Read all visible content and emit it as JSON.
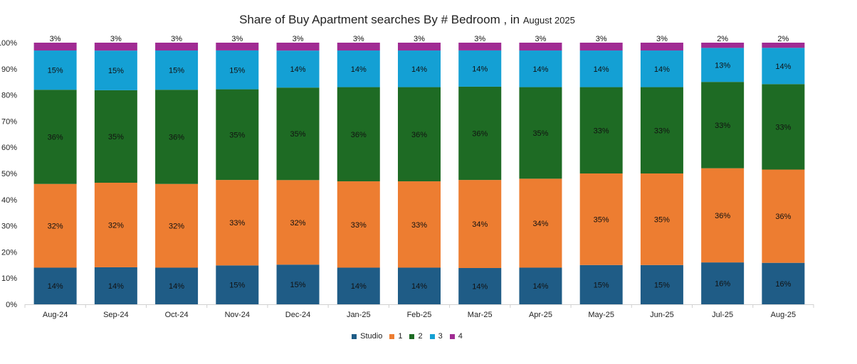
{
  "title_main": "Share of Buy Apartment searches  By # Bedroom , in",
  "title_small": "August 2025",
  "chart_data": {
    "type": "bar",
    "stacked": true,
    "title": "Share of Buy Apartment searches  By # Bedroom , in August 2025",
    "categories": [
      "Aug-24",
      "Sep-24",
      "Oct-24",
      "Nov-24",
      "Dec-24",
      "Jan-25",
      "Feb-25",
      "Mar-25",
      "Apr-25",
      "May-25",
      "Jun-25",
      "Jul-25",
      "Aug-25"
    ],
    "ylim": [
      0,
      100
    ],
    "yticks": [
      "0%",
      "10%",
      "20%",
      "30%",
      "40%",
      "50%",
      "60%",
      "70%",
      "80%",
      "90%",
      "100%"
    ],
    "legend_position": "bottom",
    "series": [
      {
        "name": "Studio",
        "color": "#1f5c86",
        "values": [
          14,
          14,
          14,
          15,
          15,
          14,
          14,
          14,
          14,
          15,
          15,
          16,
          16
        ],
        "labels": [
          "14%",
          "14%",
          "14%",
          "15%",
          "15%",
          "14%",
          "14%",
          "14%",
          "14%",
          "15%",
          "15%",
          "16%",
          "16%"
        ]
      },
      {
        "name": "1",
        "color": "#ed7d31",
        "values": [
          32,
          32,
          32,
          33,
          32,
          33,
          33,
          34,
          34,
          35,
          35,
          36,
          36
        ],
        "labels": [
          "32%",
          "32%",
          "32%",
          "33%",
          "32%",
          "33%",
          "33%",
          "34%",
          "34%",
          "35%",
          "35%",
          "36%",
          "36%"
        ]
      },
      {
        "name": "2",
        "color": "#1e6b24",
        "values": [
          36,
          35,
          36,
          35,
          35,
          36,
          36,
          36,
          35,
          33,
          33,
          33,
          33
        ],
        "labels": [
          "36%",
          "35%",
          "36%",
          "35%",
          "35%",
          "36%",
          "36%",
          "36%",
          "35%",
          "33%",
          "33%",
          "33%",
          "33%"
        ]
      },
      {
        "name": "3",
        "color": "#14a0d4",
        "values": [
          15,
          15,
          15,
          15,
          14,
          14,
          14,
          14,
          14,
          14,
          14,
          13,
          14
        ],
        "labels": [
          "15%",
          "15%",
          "15%",
          "15%",
          "14%",
          "14%",
          "14%",
          "14%",
          "14%",
          "14%",
          "14%",
          "13%",
          "14%"
        ]
      },
      {
        "name": "4",
        "color": "#a02b93",
        "values": [
          3,
          3,
          3,
          3,
          3,
          3,
          3,
          3,
          3,
          3,
          3,
          2,
          2
        ],
        "labels": [
          "3%",
          "3%",
          "3%",
          "3%",
          "3%",
          "3%",
          "3%",
          "3%",
          "3%",
          "3%",
          "3%",
          "2%",
          "2%"
        ]
      }
    ]
  }
}
